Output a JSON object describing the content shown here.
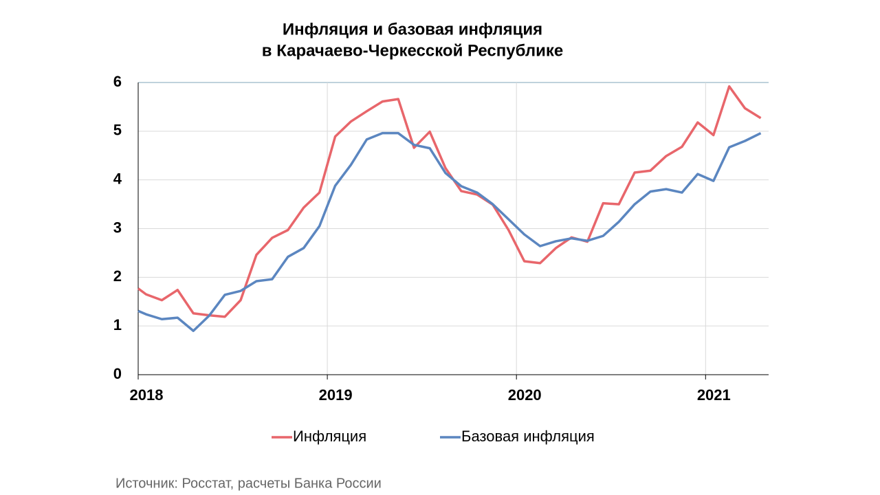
{
  "chart_data": {
    "type": "line",
    "title": [
      "Инфляция и базовая инфляция",
      "в Карачаево-Черкесской Республике"
    ],
    "source": "Источник: Росстат, расчеты Банка России",
    "x": [
      0,
      0.5,
      1.5,
      2.5,
      3.5,
      4.5,
      5.5,
      6.5,
      7.5,
      8.5,
      9.5,
      10.5,
      11.5,
      12.5,
      13.5,
      14.5,
      15.5,
      16.5,
      17.5,
      18.5,
      19.5,
      20.5,
      21.5,
      22.5,
      23.5,
      24.5,
      25.5,
      26.5,
      27.5,
      28.5,
      29.5,
      30.5,
      31.5,
      32.5,
      33.5,
      34.5,
      35.5,
      36.5,
      37.5,
      38.5,
      39.5
    ],
    "xlim": [
      0,
      40
    ],
    "xticks": [
      {
        "value": 0,
        "label": "2018"
      },
      {
        "value": 12,
        "label": "2019"
      },
      {
        "value": 24,
        "label": "2020"
      },
      {
        "value": 36,
        "label": "2021"
      }
    ],
    "ylim": [
      0,
      6
    ],
    "yticks": [
      0,
      1,
      2,
      3,
      4,
      5,
      6
    ],
    "grid": true,
    "legend": "bottom",
    "series": [
      {
        "name": "Инфляция",
        "color": "#e8666b",
        "values": [
          1.77,
          1.65,
          1.53,
          1.74,
          1.26,
          1.22,
          1.19,
          1.53,
          2.46,
          2.81,
          2.97,
          3.43,
          3.74,
          4.89,
          5.2,
          5.41,
          5.61,
          5.66,
          4.66,
          4.99,
          4.24,
          3.77,
          3.7,
          3.49,
          2.97,
          2.33,
          2.29,
          2.6,
          2.82,
          2.73,
          3.52,
          3.5,
          4.15,
          4.19,
          4.49,
          4.68,
          5.18,
          4.92,
          5.92,
          5.47,
          5.27
        ]
      },
      {
        "name": "Базовая инфляция",
        "color": "#5b86c0",
        "values": [
          1.31,
          1.24,
          1.14,
          1.17,
          0.9,
          1.21,
          1.64,
          1.72,
          1.92,
          1.96,
          2.42,
          2.6,
          3.05,
          3.88,
          4.31,
          4.83,
          4.96,
          4.96,
          4.72,
          4.65,
          4.14,
          3.87,
          3.74,
          3.5,
          3.19,
          2.88,
          2.64,
          2.74,
          2.8,
          2.75,
          2.85,
          3.14,
          3.5,
          3.76,
          3.81,
          3.74,
          4.12,
          3.98,
          4.67,
          4.8,
          4.96
        ]
      }
    ]
  }
}
